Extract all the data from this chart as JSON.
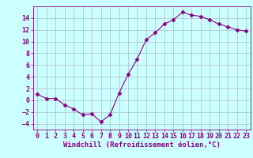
{
  "x": [
    0,
    1,
    2,
    3,
    4,
    5,
    6,
    7,
    8,
    9,
    10,
    11,
    12,
    13,
    14,
    15,
    16,
    17,
    18,
    19,
    20,
    21,
    22,
    23
  ],
  "y": [
    1,
    0.3,
    0.3,
    -0.8,
    -1.5,
    -2.5,
    -2.3,
    -3.7,
    -2.5,
    1.2,
    4.4,
    7.0,
    10.3,
    11.5,
    13.0,
    13.7,
    15.0,
    14.5,
    14.3,
    13.7,
    13.0,
    12.5,
    12.0,
    11.8
  ],
  "line_color": "#880088",
  "marker": "D",
  "marker_size": 2.5,
  "bg_color": "#ccffff",
  "grid_color": "#aabbcc",
  "xlabel": "Windchill (Refroidissement éolien,°C)",
  "xlabel_fontsize": 6.5,
  "tick_fontsize": 6,
  "xlim": [
    -0.5,
    23.5
  ],
  "ylim": [
    -5,
    16
  ],
  "yticks": [
    -4,
    -2,
    0,
    2,
    4,
    6,
    8,
    10,
    12,
    14
  ],
  "xticks": [
    0,
    1,
    2,
    3,
    4,
    5,
    6,
    7,
    8,
    9,
    10,
    11,
    12,
    13,
    14,
    15,
    16,
    17,
    18,
    19,
    20,
    21,
    22,
    23
  ]
}
